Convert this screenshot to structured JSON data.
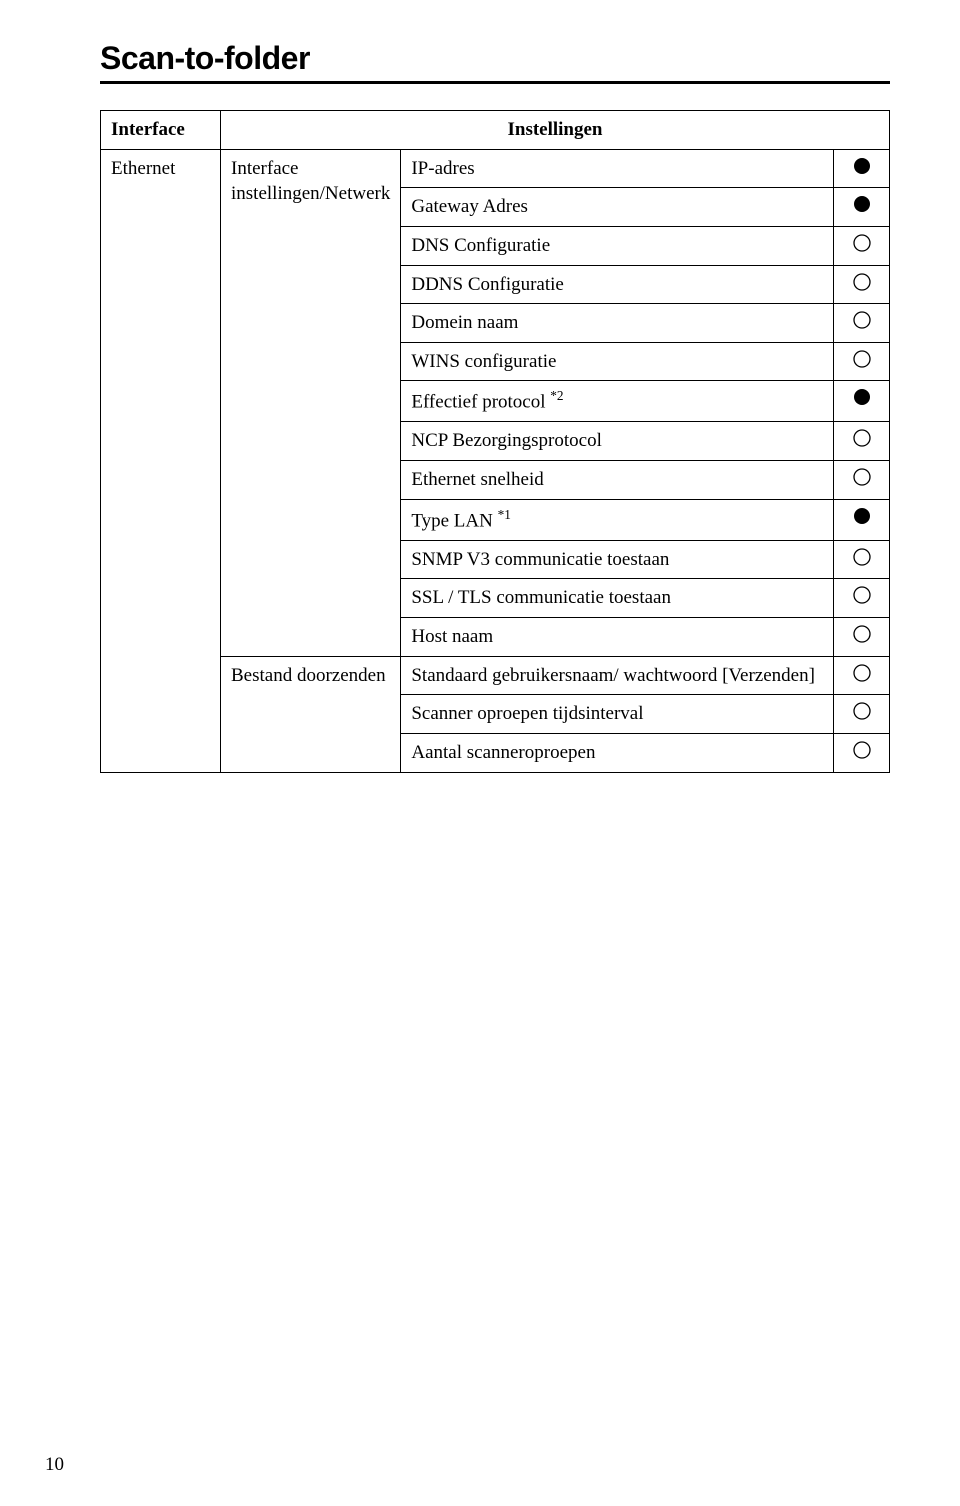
{
  "page": {
    "title": "Scan-to-folder",
    "number": "10"
  },
  "table": {
    "headers": {
      "interface": "Interface",
      "instellingen": "Instellingen"
    },
    "col1": {
      "ethernet": "Ethernet"
    },
    "col2": {
      "interface_instellingen": "Interface instellingen/Netwerk",
      "bestand_doorzenden": "Bestand doorzenden"
    },
    "rows": [
      {
        "label": "IP-adres",
        "symbol": "filled"
      },
      {
        "label": "Gateway Adres",
        "symbol": "filled"
      },
      {
        "label": "DNS Configuratie",
        "symbol": "hollow"
      },
      {
        "label": "DDNS Configuratie",
        "symbol": "hollow"
      },
      {
        "label": "Domein naam",
        "symbol": "hollow"
      },
      {
        "label": "WINS configuratie",
        "symbol": "hollow"
      },
      {
        "label": "Effectief protocol ",
        "sup": "*2",
        "symbol": "filled"
      },
      {
        "label": "NCP Bezorgingsprotocol",
        "symbol": "hollow"
      },
      {
        "label": "Ethernet snelheid",
        "symbol": "hollow"
      },
      {
        "label": "Type LAN ",
        "sup": "*1",
        "symbol": "filled"
      },
      {
        "label": "SNMP V3 communicatie toestaan",
        "symbol": "hollow"
      },
      {
        "label": "SSL / TLS communicatie toestaan",
        "symbol": "hollow"
      },
      {
        "label": "Host naam",
        "symbol": "hollow"
      },
      {
        "label": "Standaard gebruikersnaam/ wachtwoord [Verzenden]",
        "symbol": "hollow"
      },
      {
        "label": "Scanner oproepen tijdsinterval",
        "symbol": "hollow"
      },
      {
        "label": "Aantal scanneroproepen",
        "symbol": "hollow"
      }
    ]
  },
  "style": {
    "filled_color": "#000000",
    "hollow_stroke": "#000000",
    "circle_radius": 8
  }
}
